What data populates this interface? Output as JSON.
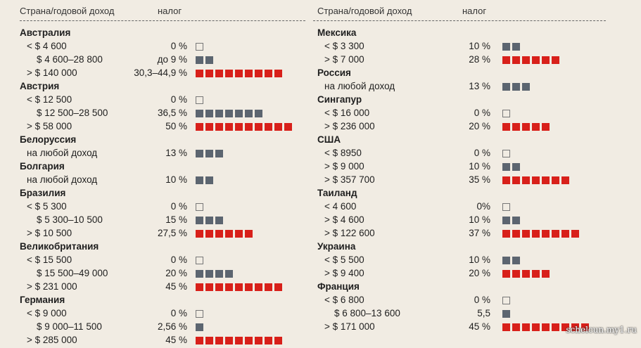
{
  "headers": {
    "left_col": "Страна/годовой доход",
    "left_tax": "налог",
    "right_col": "Страна/годовой доход",
    "right_tax": "налог"
  },
  "colors": {
    "gray": "#5c6570",
    "red": "#d8201a",
    "background": "#f1ece3"
  },
  "watermark": "schelcun.my1.ru",
  "chart_data": {
    "type": "table",
    "title": "",
    "columns": [
      "Страна/годовой доход",
      "налог"
    ],
    "left": [
      {
        "country": "Австралия",
        "rows": [
          {
            "label": "< $ 4 600",
            "rate": "0 %",
            "squares": 1,
            "kind": "empty"
          },
          {
            "label": "$ 4 600–28 800",
            "rate": "до 9 %",
            "squares": 2,
            "kind": "gray"
          },
          {
            "label": "> $ 140 000",
            "rate": "30,3–44,9 %",
            "squares": 9,
            "kind": "red"
          }
        ]
      },
      {
        "country": "Австрия",
        "rows": [
          {
            "label": "< $ 12 500",
            "rate": "0 %",
            "squares": 1,
            "kind": "empty"
          },
          {
            "label": "$ 12 500–28 500",
            "rate": "36,5 %",
            "squares": 7,
            "kind": "gray"
          },
          {
            "label": "> $ 58 000",
            "rate": "50 %",
            "squares": 10,
            "kind": "red"
          }
        ]
      },
      {
        "country": "Белоруссия",
        "rows": [
          {
            "label": "на любой доход",
            "rate": "13 %",
            "squares": 3,
            "kind": "gray"
          }
        ]
      },
      {
        "country": "Болгария",
        "rows": [
          {
            "label": "на любой доход",
            "rate": "10 %",
            "squares": 2,
            "kind": "gray"
          }
        ]
      },
      {
        "country": "Бразилия",
        "rows": [
          {
            "label": "< $ 5 300",
            "rate": "0 %",
            "squares": 1,
            "kind": "empty"
          },
          {
            "label": "$ 5 300–10 500",
            "rate": "15 %",
            "squares": 3,
            "kind": "gray"
          },
          {
            "label": "> $ 10 500",
            "rate": "27,5 %",
            "squares": 6,
            "kind": "red"
          }
        ]
      },
      {
        "country": "Великобритания",
        "rows": [
          {
            "label": "< $ 15 500",
            "rate": "0 %",
            "squares": 1,
            "kind": "empty"
          },
          {
            "label": "$ 15 500–49 000",
            "rate": "20 %",
            "squares": 4,
            "kind": "gray"
          },
          {
            "label": "> $ 231 000",
            "rate": "45 %",
            "squares": 9,
            "kind": "red"
          }
        ]
      },
      {
        "country": "Германия",
        "rows": [
          {
            "label": "< $ 9 000",
            "rate": "0 %",
            "squares": 1,
            "kind": "empty"
          },
          {
            "label": "$ 9 000–11 500",
            "rate": "2,56 %",
            "squares": 1,
            "kind": "gray"
          },
          {
            "label": "> $ 285 000",
            "rate": "45 %",
            "squares": 9,
            "kind": "red"
          }
        ]
      }
    ],
    "right": [
      {
        "country": "Мексика",
        "rows": [
          {
            "label": "< $ 3 300",
            "rate": "10 %",
            "squares": 2,
            "kind": "gray"
          },
          {
            "label": "> $ 7 000",
            "rate": "28 %",
            "squares": 6,
            "kind": "red"
          }
        ]
      },
      {
        "country": "Россия",
        "rows": [
          {
            "label": "на любой доход",
            "rate": "13 %",
            "squares": 3,
            "kind": "gray"
          }
        ]
      },
      {
        "country": "Сингапур",
        "rows": [
          {
            "label": "< $ 16 000",
            "rate": "0 %",
            "squares": 1,
            "kind": "empty"
          },
          {
            "label": "> $ 236 000",
            "rate": "20 %",
            "squares": 5,
            "kind": "red"
          }
        ]
      },
      {
        "country": "США",
        "rows": [
          {
            "label": "< $ 8950",
            "rate": "0 %",
            "squares": 1,
            "kind": "empty"
          },
          {
            "label": "> $ 9 000",
            "rate": "10 %",
            "squares": 2,
            "kind": "gray"
          },
          {
            "label": "> $ 357 700",
            "rate": "35 %",
            "squares": 7,
            "kind": "red"
          }
        ]
      },
      {
        "country": "Таиланд",
        "rows": [
          {
            "label": "< 4 600",
            "rate": "0%",
            "squares": 1,
            "kind": "empty"
          },
          {
            "label": "> $ 4 600",
            "rate": "10 %",
            "squares": 2,
            "kind": "gray"
          },
          {
            "label": "> $ 122 600",
            "rate": "37 %",
            "squares": 8,
            "kind": "red"
          }
        ]
      },
      {
        "country": "Украина",
        "rows": [
          {
            "label": "< $ 5 500",
            "rate": "10 %",
            "squares": 2,
            "kind": "gray"
          },
          {
            "label": "> $ 9 400",
            "rate": "20 %",
            "squares": 5,
            "kind": "red"
          }
        ]
      },
      {
        "country": "Франция",
        "rows": [
          {
            "label": "< $ 6 800",
            "rate": "0 %",
            "squares": 1,
            "kind": "empty"
          },
          {
            "label": "$ 6 800–13 600",
            "rate": "5,5",
            "squares": 1,
            "kind": "gray"
          },
          {
            "label": "> $ 171 000",
            "rate": "45 %",
            "squares": 9,
            "kind": "red"
          }
        ]
      }
    ]
  }
}
